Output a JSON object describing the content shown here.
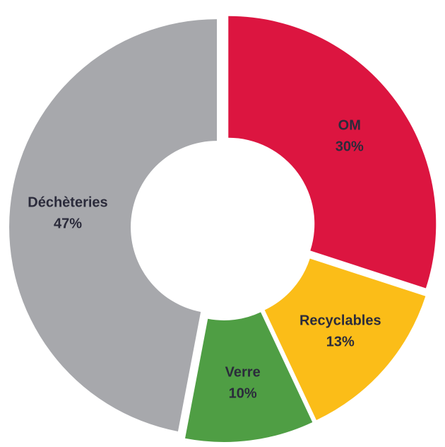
{
  "chart_data": {
    "type": "donut",
    "categories": [
      "OM",
      "Recyclables",
      "Verre",
      "Déchèteries"
    ],
    "values": [
      30,
      13,
      10,
      47
    ],
    "value_labels": [
      "30%",
      "13%",
      "10%",
      "47%"
    ],
    "colors": [
      "#dc1540",
      "#fbbd18",
      "#4f9e44",
      "#a7a8ac"
    ]
  }
}
